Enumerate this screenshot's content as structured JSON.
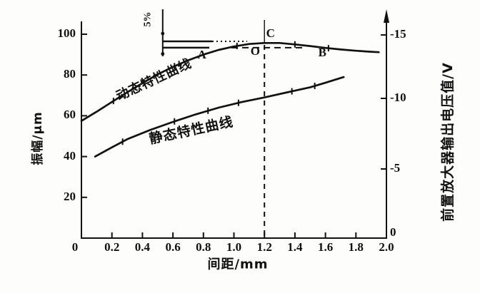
{
  "chart_data": {
    "type": "line",
    "title": "",
    "xlabel": "间距/mm",
    "ylabel_left": "振幅/μm",
    "ylabel_right": "前置放大器输出电压值/V",
    "xlim": [
      0,
      2.0
    ],
    "ylim_left": [
      0,
      105
    ],
    "ylim_right": [
      0,
      -15.8
    ],
    "grid": false,
    "x_ticks": [
      "0",
      "0.2",
      "0.4",
      "0.6",
      "0.8",
      "1.0",
      "1.2",
      "1.4",
      "1.6",
      "1.8",
      "2.0"
    ],
    "y_left_ticks": [
      "20",
      "40",
      "60",
      "80",
      "100"
    ],
    "y_right_ticks": [
      "-15",
      "-10",
      "-5",
      "0"
    ],
    "series": [
      {
        "name": "动态特性曲线",
        "points_mm_um": [
          [
            0,
            57.5
          ],
          [
            0.1,
            62
          ],
          [
            0.2,
            66.8
          ],
          [
            0.3,
            71.5
          ],
          [
            0.4,
            76
          ],
          [
            0.5,
            80.3
          ],
          [
            0.6,
            84
          ],
          [
            0.7,
            87.2
          ],
          [
            0.8,
            90
          ],
          [
            0.9,
            92.3
          ],
          [
            1.0,
            94
          ],
          [
            1.1,
            95.2
          ],
          [
            1.2,
            95.7
          ],
          [
            1.3,
            95.7
          ],
          [
            1.4,
            95
          ],
          [
            1.5,
            94.2
          ],
          [
            1.6,
            93.3
          ],
          [
            1.7,
            92.5
          ],
          [
            1.8,
            91.9
          ],
          [
            1.9,
            91.4
          ],
          [
            1.95,
            91.2
          ]
        ]
      },
      {
        "name": "静态特性曲线",
        "points_mm_um": [
          [
            0.09,
            40
          ],
          [
            0.2,
            44.5
          ],
          [
            0.3,
            48.5
          ],
          [
            0.45,
            53
          ],
          [
            0.6,
            57
          ],
          [
            0.75,
            60.7
          ],
          [
            0.9,
            64
          ],
          [
            1.05,
            66.7
          ],
          [
            1.2,
            69
          ],
          [
            1.35,
            71.5
          ],
          [
            1.5,
            74
          ],
          [
            1.6,
            76.2
          ],
          [
            1.72,
            79
          ]
        ]
      }
    ],
    "point_labels": [
      {
        "label": "A",
        "x_mm": 0.79,
        "amp_um": 89.9
      },
      {
        "label": "B",
        "x_mm": 1.58,
        "amp_um": 90.9
      },
      {
        "label": "C",
        "x_mm": 1.24,
        "amp_um": 100.3
      },
      {
        "label": "O",
        "x_mm": 1.14,
        "amp_um": 91.6
      }
    ],
    "annotations": {
      "five_percent": {
        "label": "5%",
        "x_mm": 0.533,
        "upper_amp_um": 96.5,
        "lower_amp_um": 93.4
      },
      "guides": {
        "vertical_x_mm": 1.2,
        "horizontal_amp_um": 93.4
      }
    }
  },
  "colors": {
    "ink": "#111111",
    "background": "#ffffff"
  }
}
